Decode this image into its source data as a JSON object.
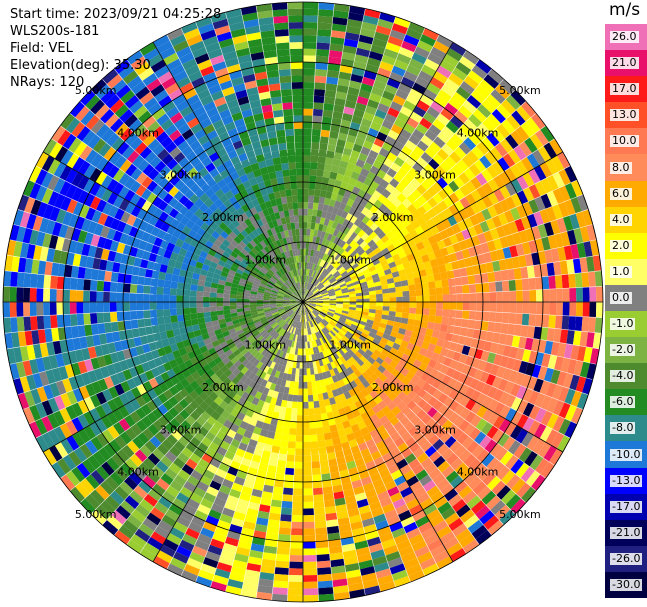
{
  "info": {
    "start_time": "Start time: 2023/09/21 04:25:28",
    "instrument": "WLS200s-181",
    "field": "Field: VEL",
    "elevation": "Elevation(deg): 35.30",
    "nrays": "NRays: 120"
  },
  "colorbar": {
    "unit": "m/s",
    "levels": [
      {
        "label": "26.0",
        "color": "#f070b8"
      },
      {
        "label": "21.0",
        "color": "#e8106a"
      },
      {
        "label": "17.0",
        "color": "#ff1a1a"
      },
      {
        "label": "13.0",
        "color": "#ff5028"
      },
      {
        "label": "10.0",
        "color": "#ff7a52"
      },
      {
        "label": "8.0",
        "color": "#ff8a5a"
      },
      {
        "label": "6.0",
        "color": "#ffaa00"
      },
      {
        "label": "4.0",
        "color": "#ffd400"
      },
      {
        "label": "2.0",
        "color": "#ffff00"
      },
      {
        "label": "1.0",
        "color": "#ffff66"
      },
      {
        "label": "0.0",
        "color": "#808080"
      },
      {
        "label": "-1.0",
        "color": "#9acd32"
      },
      {
        "label": "-2.0",
        "color": "#7cb342"
      },
      {
        "label": "-4.0",
        "color": "#4d8b2e"
      },
      {
        "label": "-6.0",
        "color": "#228b22"
      },
      {
        "label": "-8.0",
        "color": "#2e8b8b"
      },
      {
        "label": "-10.0",
        "color": "#1e78d8"
      },
      {
        "label": "-13.0",
        "color": "#0000ff"
      },
      {
        "label": "-17.0",
        "color": "#0000b0"
      },
      {
        "label": "-21.0",
        "color": "#00005a"
      },
      {
        "label": "-26.0",
        "color": "#202080"
      },
      {
        "label": "-30.0",
        "color": "#000040"
      }
    ]
  },
  "range_rings_km": [
    1,
    2,
    3,
    4,
    5
  ],
  "ring_labels": [
    "1.00km",
    "2.00km",
    "3.00km",
    "4.00km",
    "5.00km"
  ]
}
